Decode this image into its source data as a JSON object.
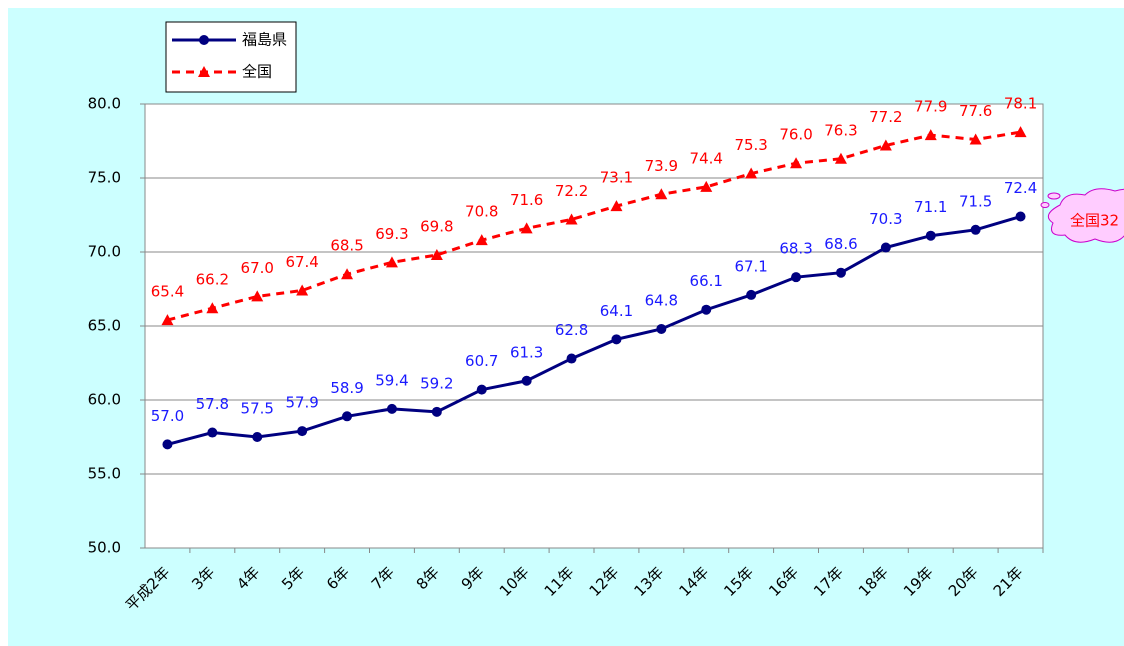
{
  "chart_data": {
    "type": "line",
    "categories": [
      "平成2年",
      "3年",
      "4年",
      "5年",
      "6年",
      "7年",
      "8年",
      "9年",
      "10年",
      "11年",
      "12年",
      "13年",
      "14年",
      "15年",
      "16年",
      "17年",
      "18年",
      "19年",
      "20年",
      "21年"
    ],
    "series": [
      {
        "name": "福島県",
        "color": "#000080",
        "label_color": "#1a1aff",
        "marker": "circle",
        "dash": false,
        "values": [
          57.0,
          57.8,
          57.5,
          57.9,
          58.9,
          59.4,
          59.2,
          60.7,
          61.3,
          62.8,
          64.1,
          64.8,
          66.1,
          67.1,
          68.3,
          68.6,
          70.3,
          71.1,
          71.5,
          72.4
        ],
        "value_labels": [
          "57.0",
          "57.8",
          "57.5",
          "57.9",
          "58.9",
          "59.4",
          "59.2",
          "60.7",
          "61.3",
          "62.8",
          "64.1",
          "64.8",
          "66.1",
          "67.1",
          "68.3",
          "68.6",
          "70.3",
          "71.1",
          "71.5",
          "72.4"
        ]
      },
      {
        "name": "全国",
        "color": "#ff0000",
        "label_color": "#ff0000",
        "marker": "triangle",
        "dash": true,
        "values": [
          65.4,
          66.2,
          67.0,
          67.4,
          68.5,
          69.3,
          69.8,
          70.8,
          71.6,
          72.2,
          73.1,
          73.9,
          74.4,
          75.3,
          76.0,
          76.3,
          77.2,
          77.9,
          77.6,
          78.1
        ],
        "value_labels": [
          "65.4",
          "66.2",
          "67.0",
          "67.4",
          "68.5",
          "69.3",
          "69.8",
          "70.8",
          "71.6",
          "72.2",
          "73.1",
          "73.9",
          "74.4",
          "75.3",
          "76.0",
          "76.3",
          "77.2",
          "77.9",
          "77.6",
          "78.1"
        ]
      }
    ],
    "ylim": [
      50,
      80
    ],
    "yticks": [
      {
        "value": 50,
        "label": "50.0"
      },
      {
        "value": 55,
        "label": "55.0"
      },
      {
        "value": 60,
        "label": "60.0"
      },
      {
        "value": 65,
        "label": "65.0"
      },
      {
        "value": 70,
        "label": "70.0"
      },
      {
        "value": 75,
        "label": "75.0"
      },
      {
        "value": 80,
        "label": "80.0"
      }
    ],
    "grid": true,
    "legend": "top-left",
    "annotation": "全国32"
  }
}
